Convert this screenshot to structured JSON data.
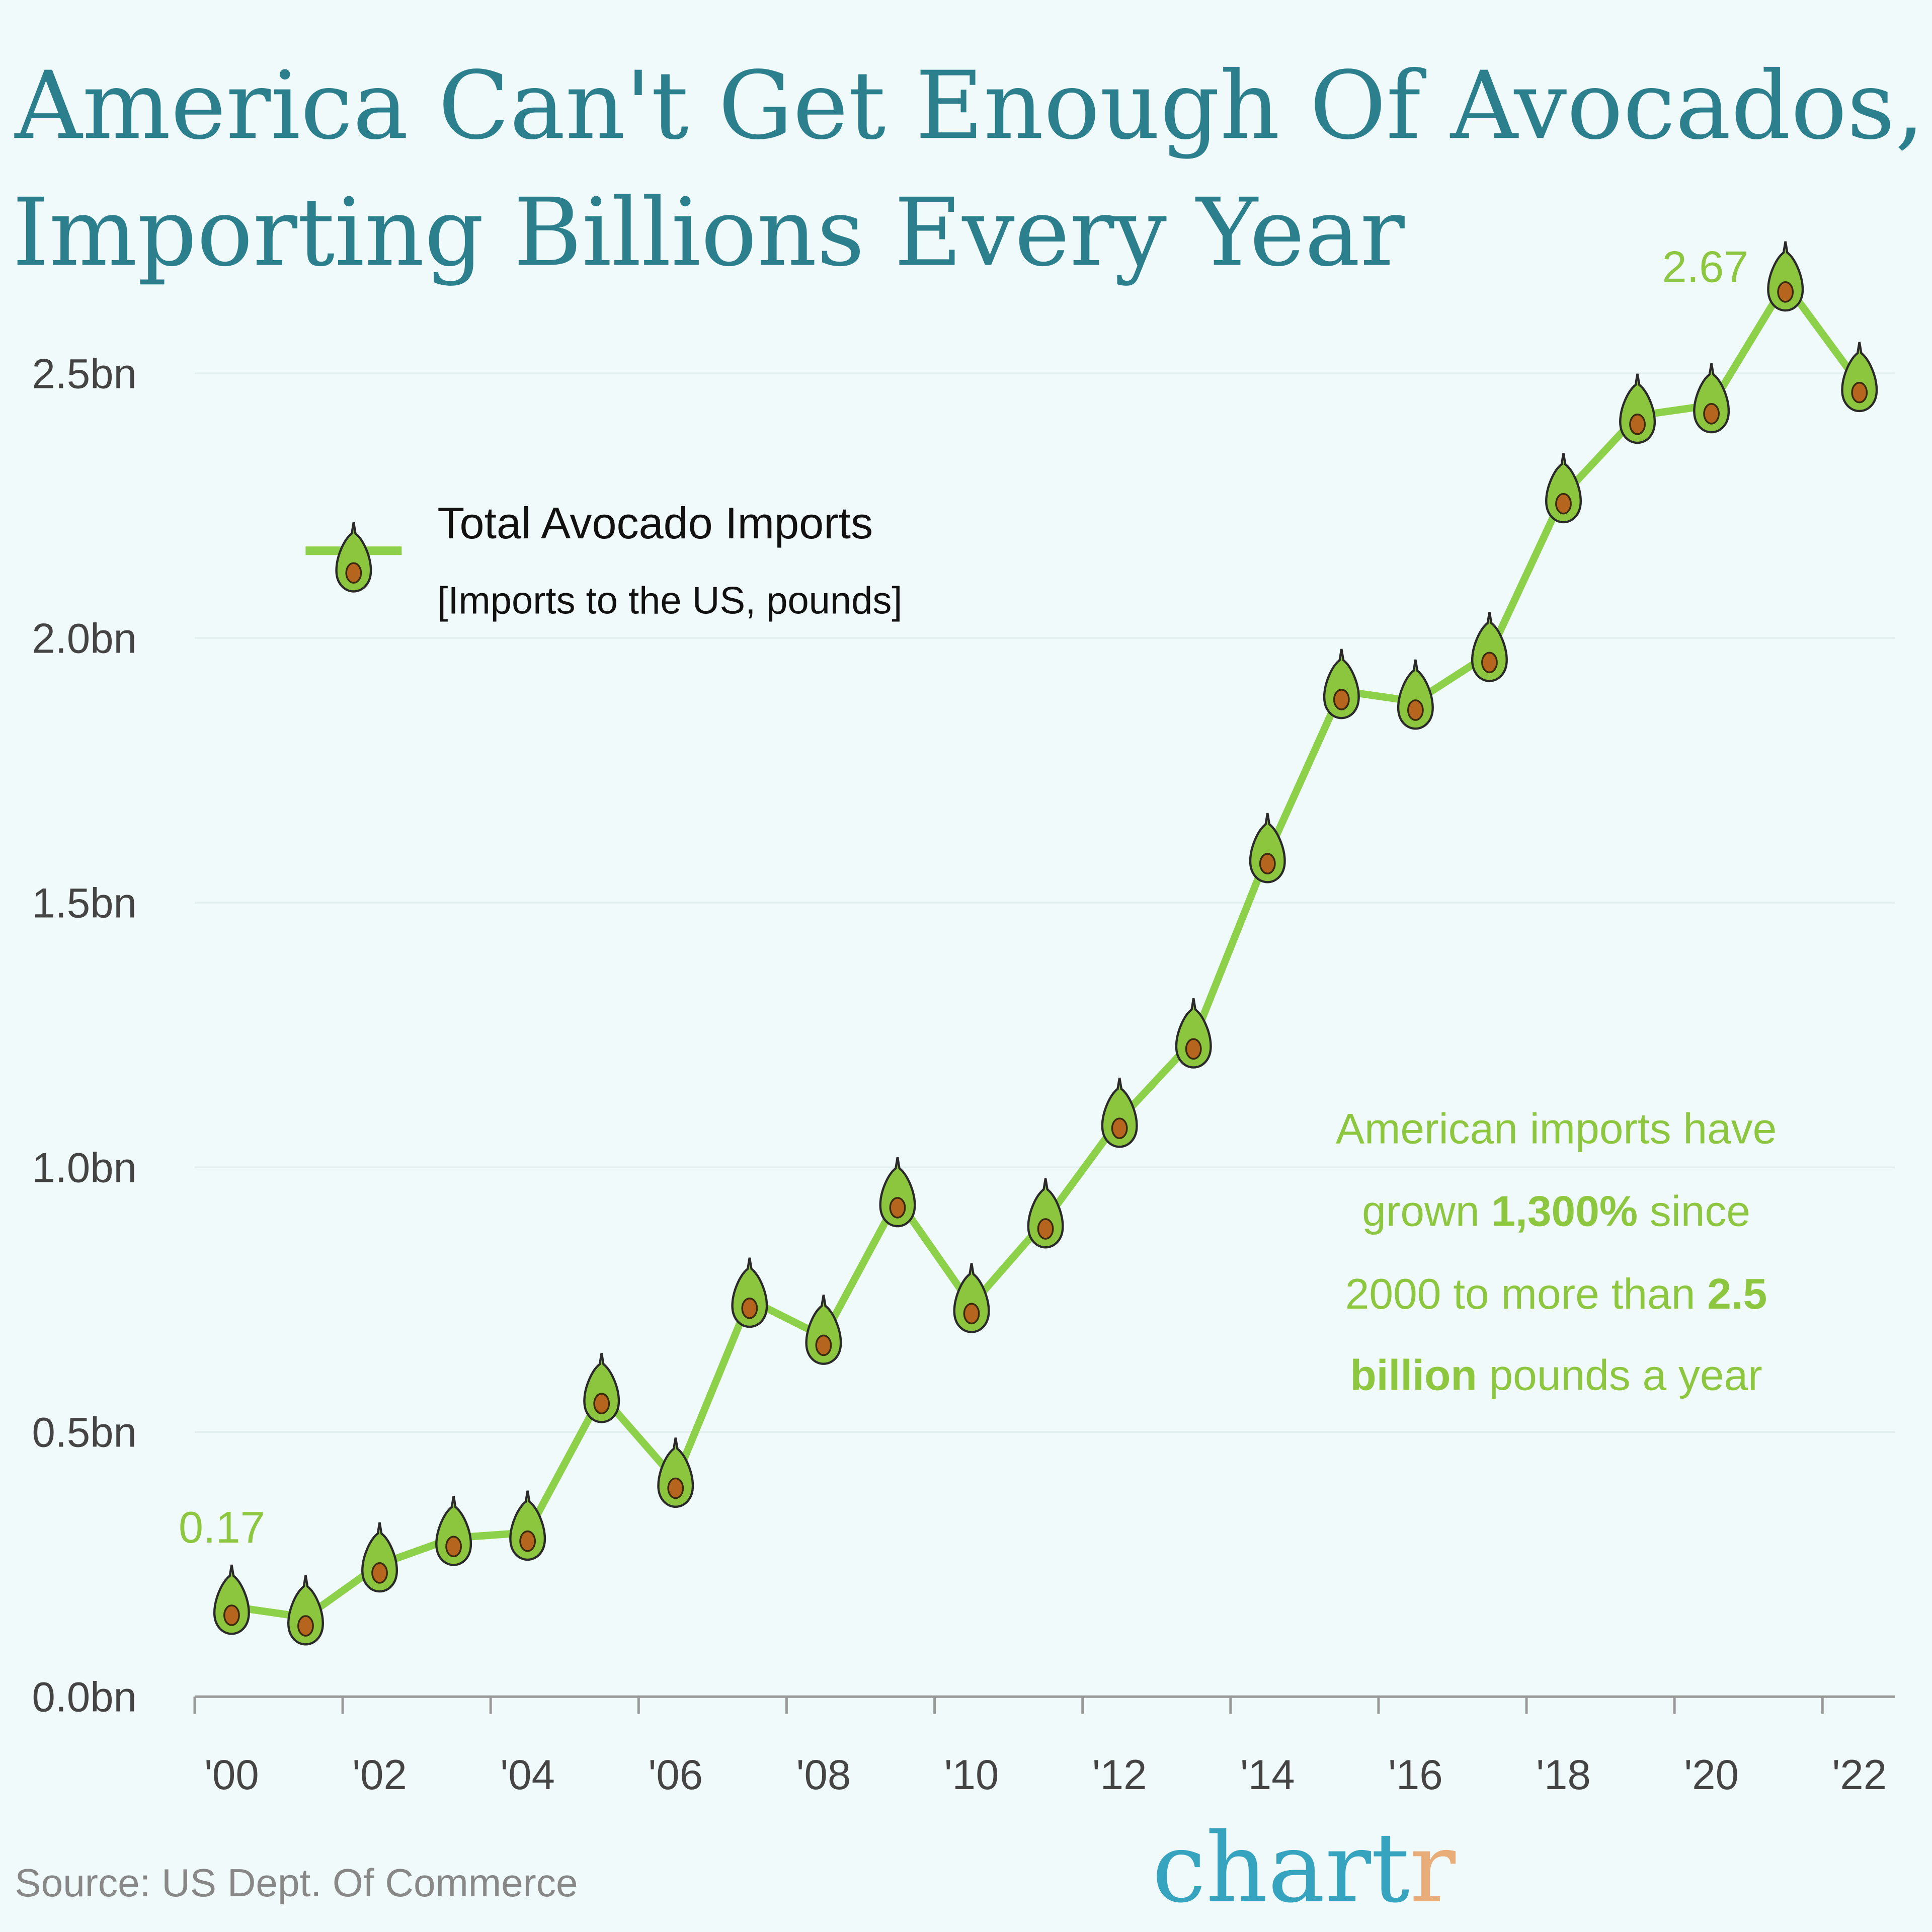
{
  "title": {
    "line1": "America Can't Get Enough Of Avocados,",
    "line2": "Importing Billions Every Year"
  },
  "legend": {
    "series_name": "Total Avocado Imports",
    "subtitle": "[Imports to the US, pounds]",
    "icon": "avocado-icon"
  },
  "annotation": {
    "l1": "American imports have",
    "l2a": "grown ",
    "l2b": "1,300%",
    "l2c": " since",
    "l3a": "2000 to more than ",
    "l3b": "2.5",
    "l4a": "billion",
    "l4b": " pounds a year"
  },
  "source": "Source: US Dept. Of Commerce",
  "logo": {
    "main": "chart",
    "accent": "r"
  },
  "colors": {
    "line": "#8dd14a",
    "title": "#2c7f8d",
    "annotation": "#8dc63f",
    "logo": "#36a3bf",
    "logo_accent": "#e8ad78",
    "background": "#f1fafa"
  },
  "chart_data": {
    "type": "line",
    "x": [
      2000,
      2001,
      2002,
      2003,
      2004,
      2005,
      2006,
      2007,
      2008,
      2009,
      2010,
      2011,
      2012,
      2013,
      2014,
      2015,
      2016,
      2017,
      2018,
      2019,
      2020,
      2021,
      2022
    ],
    "series": [
      {
        "name": "Total Avocado Imports",
        "values": [
          0.17,
          0.15,
          0.25,
          0.3,
          0.31,
          0.57,
          0.41,
          0.75,
          0.68,
          0.94,
          0.74,
          0.9,
          1.09,
          1.24,
          1.59,
          1.9,
          1.88,
          1.97,
          2.27,
          2.42,
          2.44,
          2.67,
          2.48
        ]
      }
    ],
    "ylabel": "[Imports to the US, pounds]",
    "ylim": [
      0,
      2.5
    ],
    "yticks": [
      "0.0bn",
      "0.5bn",
      "1.0bn",
      "1.5bn",
      "2.0bn",
      "2.5bn"
    ],
    "xticks": [
      "'00",
      "'02",
      "'04",
      "'06",
      "'08",
      "'10",
      "'12",
      "'14",
      "'16",
      "'18",
      "'20",
      "'22"
    ],
    "data_labels": [
      {
        "x": 2000,
        "text": "0.17"
      },
      {
        "x": 2021,
        "text": "2.67"
      }
    ],
    "grid": "horizontal",
    "legend": "top-left"
  }
}
